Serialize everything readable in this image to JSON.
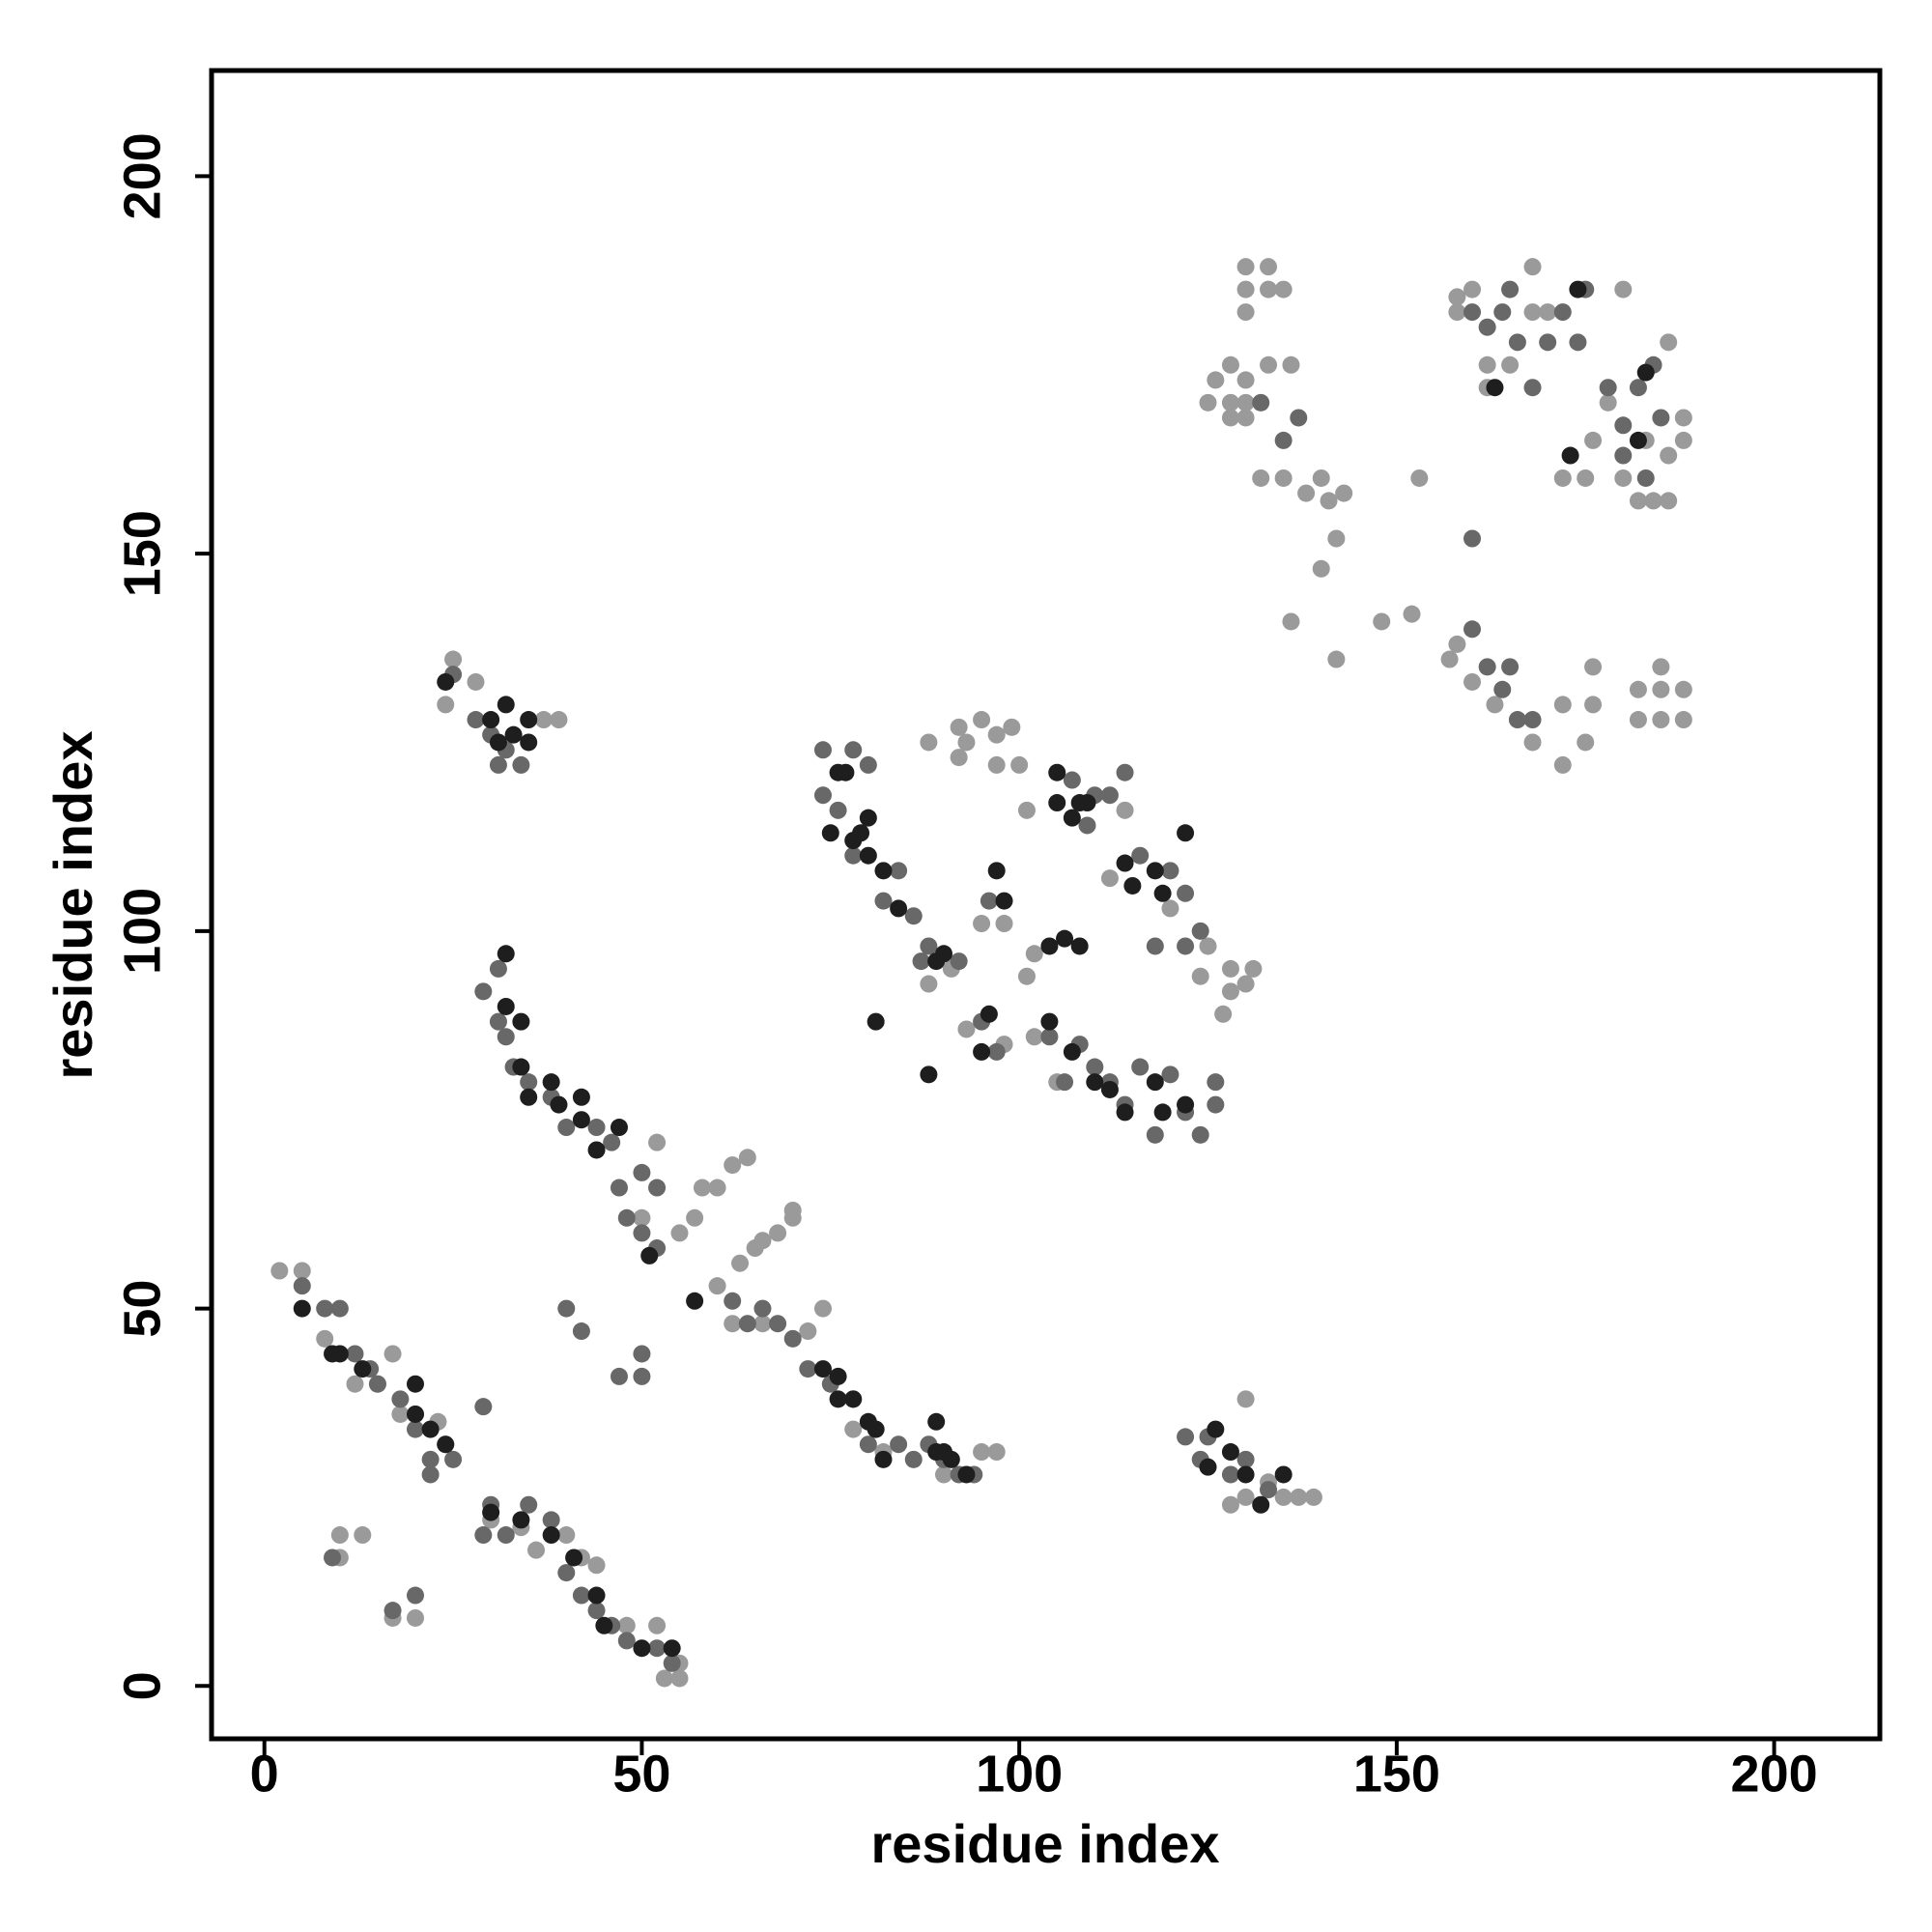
{
  "chart_data": {
    "type": "scatter",
    "xlabel": "residue index",
    "ylabel": "residue index",
    "xlim": [
      -7,
      214
    ],
    "ylim": [
      -7,
      214
    ],
    "xticks": [
      0,
      50,
      100,
      150,
      200
    ],
    "yticks": [
      0,
      50,
      100,
      150,
      200
    ],
    "series": [
      {
        "color": "#9a9a9a",
        "x": [
          125,
          126,
          128,
          128,
          128,
          130,
          130,
          130,
          130,
          130,
          130,
          133,
          133,
          135,
          133,
          136,
          132,
          135,
          138,
          140,
          141,
          143,
          142,
          140,
          136,
          142,
          148,
          152,
          153,
          157,
          158,
          160,
          163,
          168,
          172,
          172,
          175,
          176,
          176,
          158,
          158,
          160,
          162,
          162,
          165,
          168,
          168,
          170,
          172,
          175,
          176,
          178,
          180,
          182,
          184,
          186,
          186,
          188,
          188,
          186,
          183,
          180,
          182,
          185,
          185,
          188,
          188,
          182,
          185,
          25,
          24,
          28,
          37,
          39,
          52,
          50,
          55,
          57,
          58,
          60,
          62,
          64,
          66,
          68,
          70,
          70,
          63,
          65,
          60,
          72,
          74,
          66,
          62,
          2,
          5,
          8,
          17,
          12,
          20,
          15,
          23,
          18,
          30,
          34,
          36,
          40,
          42,
          44,
          48,
          52,
          53,
          55,
          55,
          10,
          10,
          17,
          20,
          13,
          92,
          93,
          95,
          97,
          99,
          100,
          97,
          92,
          95,
          98,
          102,
          101,
          88,
          91,
          125,
          128,
          128,
          130,
          131,
          127,
          124,
          120,
          114,
          101,
          112,
          88,
          105,
          93,
          98,
          102,
          130,
          130,
          133,
          135,
          137,
          139,
          128,
          78,
          82,
          90,
          95,
          97
        ],
        "y": [
          170,
          173,
          168,
          170,
          175,
          168,
          170,
          173,
          182,
          185,
          188,
          185,
          188,
          185,
          175,
          175,
          160,
          160,
          158,
          160,
          157,
          158,
          152,
          148,
          141,
          136,
          141,
          142,
          160,
          136,
          138,
          133,
          130,
          125,
          122,
          130,
          125,
          130,
          135,
          182,
          184,
          185,
          175,
          172,
          175,
          182,
          188,
          182,
          160,
          160,
          165,
          170,
          160,
          157,
          157,
          157,
          163,
          165,
          168,
          178,
          165,
          185,
          132,
          132,
          135,
          132,
          128,
          128,
          128,
          136,
          130,
          133,
          128,
          128,
          72,
          62,
          60,
          62,
          66,
          66,
          69,
          70,
          59,
          60,
          62,
          63,
          56,
          58,
          53,
          47,
          50,
          48,
          48,
          55,
          55,
          46,
          44,
          40,
          36,
          40,
          35,
          36,
          22,
          21,
          18,
          20,
          17,
          16,
          8,
          8,
          1,
          3,
          1,
          20,
          17,
          9,
          9,
          20,
          127,
          125,
          128,
          126,
          127,
          122,
          122,
          123,
          101,
          101,
          97,
          94,
          93,
          95,
          98,
          95,
          92,
          93,
          95,
          89,
          94,
          103,
          116,
          116,
          107,
          125,
          80,
          87,
          85,
          86,
          38,
          25,
          27,
          25,
          25,
          25,
          24,
          34,
          31,
          28,
          31,
          31
        ]
      },
      {
        "color": "#686868",
        "x": [
          5,
          8,
          10,
          12,
          14,
          15,
          18,
          22,
          24,
          22,
          20,
          25,
          29,
          30,
          32,
          35,
          38,
          40,
          42,
          44,
          46,
          48,
          52,
          54,
          40,
          42,
          47,
          50,
          50,
          20,
          17,
          9,
          29,
          28,
          30,
          31,
          34,
          25,
          32,
          29,
          31,
          31,
          32,
          33,
          35,
          38,
          40,
          44,
          46,
          47,
          48,
          50,
          52,
          52,
          50,
          62,
          64,
          66,
          68,
          70,
          72,
          75,
          78,
          80,
          84,
          86,
          88,
          90,
          92,
          94,
          74,
          74,
          78,
          80,
          76,
          78,
          82,
          84,
          86,
          88,
          87,
          92,
          96,
          95,
          97,
          104,
          106,
          108,
          110,
          112,
          114,
          116,
          118,
          120,
          122,
          124,
          126,
          126,
          122,
          124,
          120,
          122,
          116,
          107,
          109,
          110,
          112,
          114,
          118,
          122,
          124,
          125,
          128,
          130,
          133,
          160,
          162,
          164,
          165,
          166,
          168,
          170,
          172,
          174,
          175,
          178,
          180,
          182,
          184,
          185,
          183,
          180,
          160,
          162,
          164,
          166,
          168,
          165,
          132,
          135,
          137,
          160
        ],
        "y": [
          53,
          50,
          50,
          44,
          42,
          40,
          38,
          30,
          32,
          28,
          34,
          30,
          20,
          24,
          20,
          24,
          22,
          15,
          12,
          10,
          8,
          6,
          5,
          3,
          50,
          47,
          41,
          41,
          44,
          12,
          10,
          17,
          37,
          128,
          126,
          122,
          122,
          134,
          124,
          92,
          95,
          88,
          86,
          82,
          80,
          78,
          74,
          74,
          72,
          66,
          62,
          68,
          58,
          66,
          60,
          51,
          48,
          50,
          48,
          46,
          42,
          40,
          38,
          32,
          32,
          30,
          32,
          30,
          28,
          28,
          124,
          118,
          124,
          122,
          116,
          110,
          104,
          108,
          102,
          98,
          96,
          96,
          104,
          88,
          84,
          86,
          80,
          85,
          82,
          80,
          77,
          82,
          73,
          81,
          76,
          73,
          77,
          80,
          98,
          100,
          108,
          105,
          110,
          120,
          114,
          118,
          118,
          121,
          98,
          33,
          30,
          33,
          28,
          30,
          26,
          182,
          180,
          182,
          185,
          178,
          172,
          178,
          182,
          178,
          185,
          172,
          163,
          172,
          175,
          168,
          160,
          167,
          140,
          135,
          132,
          128,
          128,
          135,
          170,
          165,
          168,
          152
        ]
      },
      {
        "color": "#1e1e1e",
        "x": [
          5,
          9,
          10,
          13,
          20,
          20,
          24,
          22,
          30,
          34,
          38,
          41,
          44,
          45,
          50,
          54,
          32,
          30,
          33,
          35,
          31,
          35,
          24,
          32,
          32,
          34,
          34,
          35,
          38,
          39,
          42,
          42,
          44,
          47,
          51,
          57,
          74,
          76,
          76,
          78,
          80,
          81,
          82,
          89,
          89,
          90,
          91,
          93,
          76,
          77,
          75,
          79,
          78,
          80,
          80,
          82,
          84,
          90,
          89,
          88,
          81,
          95,
          96,
          98,
          97,
          105,
          105,
          107,
          108,
          109,
          104,
          106,
          108,
          114,
          115,
          118,
          119,
          122,
          104,
          107,
          110,
          112,
          114,
          118,
          119,
          122,
          125,
          126,
          128,
          130,
          132,
          135,
          173,
          163,
          183,
          174,
          182
        ],
        "y": [
          50,
          44,
          44,
          42,
          40,
          36,
          32,
          34,
          23,
          22,
          20,
          17,
          12,
          8,
          5,
          5,
          130,
          128,
          126,
          128,
          125,
          125,
          133,
          90,
          97,
          88,
          82,
          78,
          80,
          77,
          78,
          75,
          71,
          74,
          57,
          51,
          42,
          41,
          38,
          38,
          35,
          34,
          30,
          31,
          35,
          31,
          30,
          28,
          121,
          121,
          113,
          113,
          112,
          115,
          110,
          108,
          103,
          97,
          96,
          81,
          88,
          84,
          89,
          104,
          108,
          121,
          117,
          115,
          117,
          117,
          98,
          99,
          98,
          109,
          106,
          108,
          105,
          113,
          88,
          84,
          80,
          79,
          76,
          80,
          76,
          77,
          29,
          34,
          31,
          28,
          24,
          28,
          163,
          172,
          174,
          185,
          165
        ]
      }
    ]
  }
}
